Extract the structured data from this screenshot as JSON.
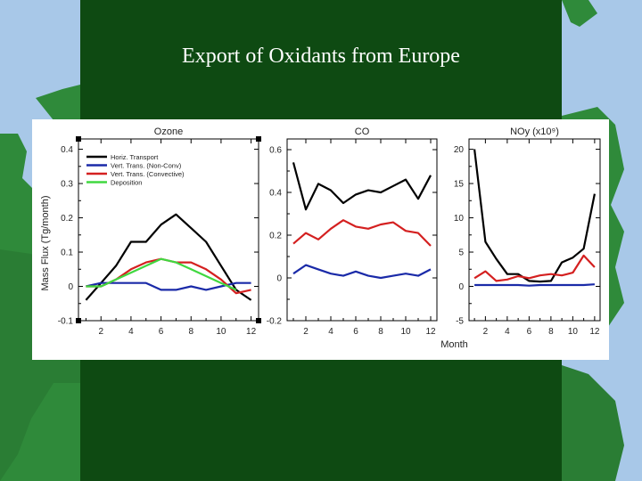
{
  "slide": {
    "title": "Export of Oxidants from Europe"
  },
  "colors": {
    "background": "#0e4a12",
    "sea": "#a8c8e8",
    "land": "#2f8a3a"
  },
  "chart_data": [
    {
      "type": "line",
      "title": "Ozone",
      "ylabel": "Mass Flux (Tg/month)",
      "xlabel": "",
      "x": [
        1,
        2,
        3,
        4,
        5,
        6,
        7,
        8,
        9,
        10,
        11,
        12
      ],
      "xlim": [
        0.5,
        12.5
      ],
      "ylim": [
        -0.1,
        0.43
      ],
      "xticks": [
        "2",
        "4",
        "6",
        "8",
        "10",
        "12"
      ],
      "yticks": [
        "-0.1",
        "0",
        "0.1",
        "0.2",
        "0.3",
        "0.4"
      ],
      "ytick_values": [
        -0.1,
        0,
        0.1,
        0.2,
        0.3,
        0.4
      ],
      "legend_position": "top-left",
      "series": [
        {
          "name": "Horiz. Transport",
          "color": "#000000",
          "values": [
            -0.04,
            0.01,
            0.06,
            0.13,
            0.13,
            0.18,
            0.21,
            0.17,
            0.13,
            0.06,
            -0.01,
            -0.04
          ]
        },
        {
          "name": "Vert. Trans. (Non-Conv)",
          "color": "#1a2aa8",
          "values": [
            0.0,
            0.01,
            0.01,
            0.01,
            0.01,
            -0.01,
            -0.01,
            0.0,
            -0.01,
            0.0,
            0.01,
            0.01
          ]
        },
        {
          "name": "Vert. Trans. (Convective)",
          "color": "#d42020",
          "values": [
            0.0,
            0.0,
            0.02,
            0.05,
            0.07,
            0.08,
            0.07,
            0.07,
            0.05,
            0.02,
            -0.02,
            -0.01
          ]
        },
        {
          "name": "Deposition",
          "color": "#40d840",
          "values": [
            0.0,
            0.0,
            0.02,
            0.04,
            0.06,
            0.08,
            0.07,
            0.05,
            0.03,
            0.01,
            -0.01,
            null
          ]
        }
      ]
    },
    {
      "type": "line",
      "title": "CO",
      "xlabel": "",
      "x": [
        1,
        2,
        3,
        4,
        5,
        6,
        7,
        8,
        9,
        10,
        11,
        12
      ],
      "xlim": [
        0.5,
        12.5
      ],
      "ylim": [
        -0.2,
        0.65
      ],
      "xticks": [
        "2",
        "4",
        "6",
        "8",
        "10",
        "12"
      ],
      "yticks": [
        "-0.2",
        "0",
        "0.2",
        "0.4",
        "0.6"
      ],
      "ytick_values": [
        -0.2,
        0,
        0.2,
        0.4,
        0.6
      ],
      "series": [
        {
          "name": "Horiz. Transport",
          "color": "#000000",
          "values": [
            0.54,
            0.32,
            0.44,
            0.41,
            0.35,
            0.39,
            0.41,
            0.4,
            0.43,
            0.46,
            0.37,
            0.48
          ]
        },
        {
          "name": "Vert. Trans. (Non-Conv)",
          "color": "#1a2aa8",
          "values": [
            0.02,
            0.06,
            0.04,
            0.02,
            0.01,
            0.03,
            0.01,
            0.0,
            0.01,
            0.02,
            0.01,
            0.04
          ]
        },
        {
          "name": "Vert. Trans. (Convective)",
          "color": "#d42020",
          "values": [
            0.16,
            0.21,
            0.18,
            0.23,
            0.27,
            0.24,
            0.23,
            0.25,
            0.26,
            0.22,
            0.21,
            0.15
          ]
        }
      ]
    },
    {
      "type": "line",
      "title": "NOy (x10⁹)",
      "xlabel": "Month",
      "x": [
        1,
        2,
        3,
        4,
        5,
        6,
        7,
        8,
        9,
        10,
        11,
        12
      ],
      "xlim": [
        0.5,
        12.5
      ],
      "ylim": [
        -5,
        21.5
      ],
      "xticks": [
        "2",
        "4",
        "6",
        "8",
        "10",
        "12"
      ],
      "yticks": [
        "-5",
        "0",
        "5",
        "10",
        "15",
        "20"
      ],
      "ytick_values": [
        -5,
        0,
        5,
        10,
        15,
        20
      ],
      "series": [
        {
          "name": "Horiz. Transport",
          "color": "#000000",
          "values": [
            20,
            6.5,
            4,
            1.8,
            1.8,
            0.8,
            0.7,
            0.8,
            3.5,
            4.2,
            5.5,
            13.5
          ]
        },
        {
          "name": "Vert. Trans. (Non-Conv)",
          "color": "#1a2aa8",
          "values": [
            0.2,
            0.2,
            0.2,
            0.2,
            0.2,
            0.1,
            0.2,
            0.2,
            0.2,
            0.2,
            0.2,
            0.3
          ]
        },
        {
          "name": "Vert. Trans. (Convective)",
          "color": "#d42020",
          "values": [
            1.2,
            2.2,
            0.8,
            1.0,
            1.5,
            1.2,
            1.6,
            1.8,
            1.6,
            2.0,
            4.5,
            2.8
          ]
        }
      ]
    }
  ]
}
